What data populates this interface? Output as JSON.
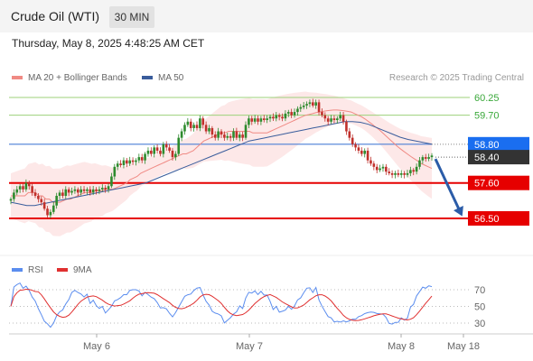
{
  "header": {
    "title": "Crude Oil (WTI)",
    "timeframe": "30 MIN"
  },
  "datetime": "Thursday, May 8, 2025 4:48:25 AM CET",
  "legend": {
    "bb_label": "MA 20 + Bollinger Bands",
    "ma50_label": "MA 50",
    "source": "Research © 2025 Trading Central",
    "rsi_label": "RSI",
    "rsi_ma_label": "9MA"
  },
  "colors": {
    "bb_line": "#f08a84",
    "bb_fill": "#fde4e4",
    "ma50": "#3a5d9c",
    "bull": "#2e8b2e",
    "bear": "#c0302b",
    "resistance": "#9cd17a",
    "pivot": "#4a7fd6",
    "support": "#e60000",
    "rsi": "#5b8def",
    "rsi_ma": "#e03030",
    "arrow": "#2b5ca8",
    "last_price": "#333333"
  },
  "chart_data": {
    "type": "candlestick",
    "x_ticks": [
      "May 6",
      "May 7",
      "May 8",
      "May 18"
    ],
    "y_ticks": [
      "60.25",
      "59.70",
      "58.80",
      "58.40",
      "57.60",
      "56.50"
    ],
    "levels": [
      {
        "label": "60.25",
        "value": 60.25,
        "kind": "resistance"
      },
      {
        "label": "59.70",
        "value": 59.7,
        "kind": "resistance"
      },
      {
        "label": "58.80",
        "value": 58.8,
        "kind": "pivot"
      },
      {
        "label": "57.60",
        "value": 57.6,
        "kind": "support"
      },
      {
        "label": "56.50",
        "value": 56.5,
        "kind": "support"
      }
    ],
    "last_price": {
      "label": "58.40",
      "value": 58.4
    },
    "forecast_target": 56.5,
    "closes": [
      57.1,
      57.3,
      57.4,
      57.5,
      57.4,
      57.6,
      57.5,
      57.3,
      57.2,
      57.1,
      57.0,
      56.8,
      56.6,
      56.7,
      56.9,
      57.2,
      57.3,
      57.2,
      57.4,
      57.3,
      57.35,
      57.4,
      57.3,
      57.4,
      57.35,
      57.4,
      57.3,
      57.4,
      57.35,
      57.4,
      57.45,
      57.4,
      57.5,
      57.8,
      58.1,
      58.2,
      58.15,
      58.3,
      58.2,
      58.3,
      58.25,
      58.3,
      58.4,
      58.3,
      58.5,
      58.6,
      58.5,
      58.7,
      58.6,
      58.5,
      58.8,
      58.7,
      58.6,
      58.4,
      58.5,
      59.0,
      59.2,
      59.4,
      59.5,
      59.3,
      59.4,
      59.3,
      59.6,
      59.4,
      59.2,
      59.3,
      59.1,
      59.0,
      59.2,
      59.1,
      59.0,
      59.05,
      59.0,
      59.2,
      59.0,
      59.1,
      59.0,
      59.4,
      59.6,
      59.5,
      59.6,
      59.5,
      59.6,
      59.55,
      59.6,
      59.65,
      59.6,
      59.7,
      59.65,
      59.6,
      59.75,
      59.8,
      59.7,
      59.8,
      59.9,
      59.95,
      60.0,
      60.05,
      60.1,
      60.0,
      60.1,
      59.8,
      59.7,
      59.6,
      59.5,
      59.6,
      59.55,
      59.6,
      59.7,
      59.5,
      59.2,
      59.0,
      58.8,
      58.7,
      58.6,
      58.5,
      58.6,
      58.3,
      58.2,
      58.1,
      58.0,
      58.05,
      58.1,
      57.95,
      57.9,
      57.85,
      57.9,
      57.85,
      57.9,
      57.85,
      57.9,
      58.0,
      57.95,
      58.1,
      58.3,
      58.4,
      58.35,
      58.4,
      58.45
    ],
    "ma20": [
      57.2,
      57.2,
      57.2,
      57.2,
      57.2,
      57.3,
      57.3,
      57.3,
      57.2,
      57.2,
      57.1,
      57.1,
      57.0,
      57.0,
      57.0,
      57.05,
      57.1,
      57.1,
      57.15,
      57.2,
      57.25,
      57.3,
      57.3,
      57.3,
      57.35,
      57.35,
      57.35,
      57.4,
      57.4,
      57.4,
      57.45,
      57.5,
      57.55,
      57.6,
      57.7,
      57.75,
      57.8,
      57.9,
      57.95,
      58.0,
      58.05,
      58.1,
      58.15,
      58.2,
      58.25,
      58.3,
      58.35,
      58.4,
      58.45,
      58.5,
      58.5,
      58.55,
      58.6,
      58.7,
      58.8,
      58.9,
      58.95,
      59.0,
      59.05,
      59.1,
      59.15,
      59.15,
      59.2,
      59.2,
      59.2,
      59.2,
      59.2,
      59.2,
      59.2,
      59.15,
      59.15,
      59.15,
      59.15,
      59.15,
      59.2,
      59.25,
      59.3,
      59.35,
      59.4,
      59.45,
      59.5,
      59.55,
      59.6,
      59.65,
      59.7,
      59.72,
      59.75,
      59.78,
      59.8,
      59.82,
      59.84,
      59.85,
      59.86,
      59.86,
      59.85,
      59.84,
      59.82,
      59.8,
      59.75,
      59.7,
      59.65,
      59.58,
      59.5,
      59.42,
      59.33,
      59.25,
      59.15,
      59.05,
      58.95,
      58.85,
      58.75,
      58.66,
      58.58,
      58.5,
      58.42,
      58.35,
      58.28,
      58.2,
      58.15,
      58.1,
      58.05
    ],
    "ma50": [
      57.0,
      56.95,
      56.9,
      56.9,
      56.95,
      57.0,
      57.05,
      57.1,
      57.15,
      57.2,
      57.25,
      57.3,
      57.35,
      57.4,
      57.45,
      57.5,
      57.55,
      57.6,
      57.7,
      57.8,
      57.9,
      58.0,
      58.1,
      58.2,
      58.3,
      58.4,
      58.5,
      58.6,
      58.7,
      58.8,
      58.9,
      58.95,
      59.0,
      59.05,
      59.1,
      59.15,
      59.2,
      59.25,
      59.3,
      59.35,
      59.4,
      59.45,
      59.5,
      59.5,
      59.48,
      59.42,
      59.32,
      59.22,
      59.12,
      59.02,
      58.95,
      58.9,
      58.85,
      58.8
    ],
    "rsi": {
      "ticks": [
        70,
        50,
        30
      ],
      "ylim": [
        20,
        80
      ]
    }
  }
}
